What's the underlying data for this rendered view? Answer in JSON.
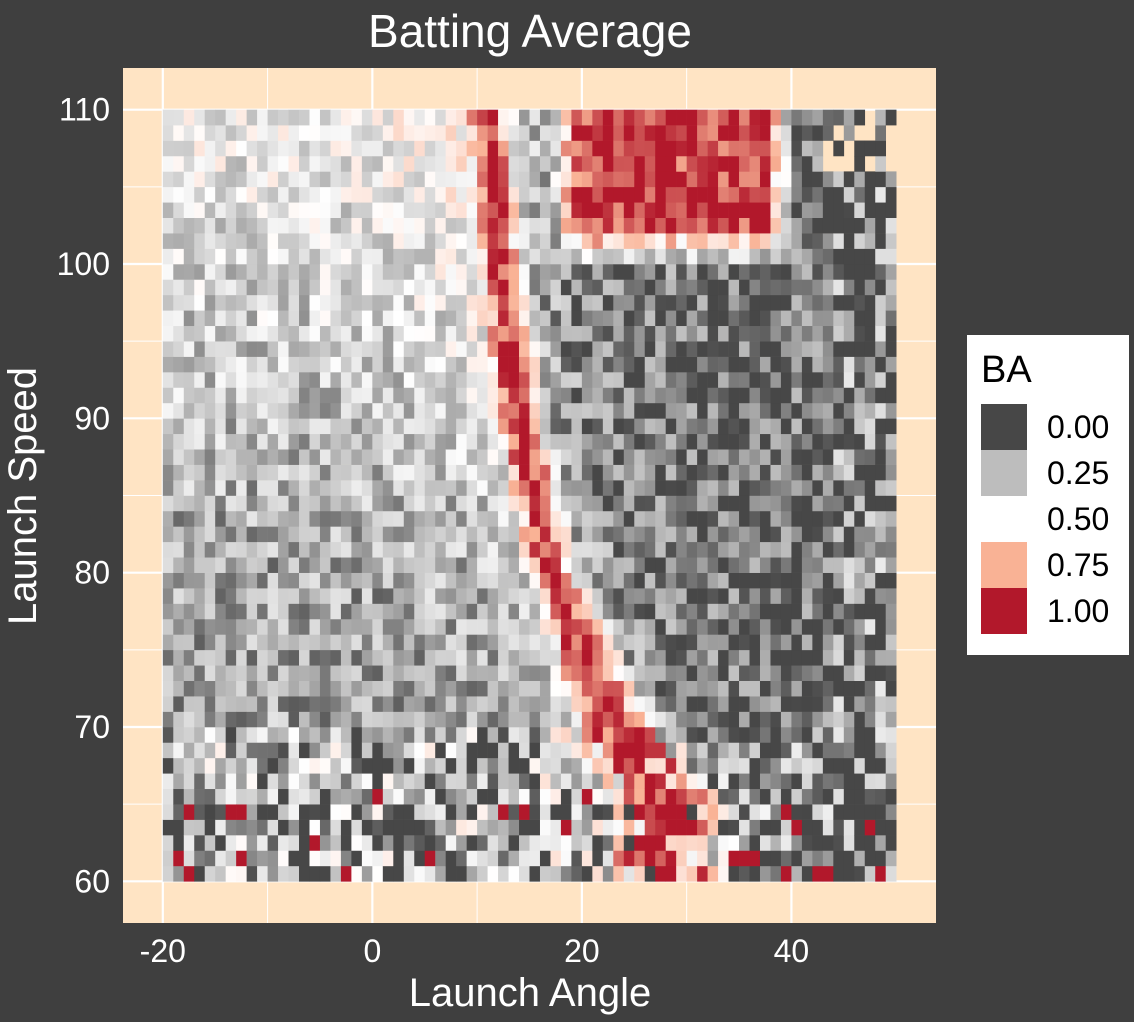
{
  "chart_data": {
    "type": "heatmap",
    "title": "Batting Average",
    "xlabel": "Launch Angle",
    "ylabel": "Launch Speed",
    "xlim": [
      -23.8,
      53.8
    ],
    "ylim": [
      57.3,
      112.7
    ],
    "x_ticks": [
      -20,
      0,
      20,
      40
    ],
    "y_ticks": [
      60,
      70,
      80,
      90,
      100,
      110
    ],
    "grid": true,
    "panel_color": "#ffe4c4",
    "cell_x_range": [
      -20,
      50
    ],
    "cell_y_range": [
      60,
      110
    ],
    "cell_width": 1,
    "cell_height": 1,
    "legend": {
      "title": "BA",
      "position": "right",
      "entries": [
        {
          "label": "0.00",
          "color": "#474747"
        },
        {
          "label": "0.25",
          "color": "#bdbdbd"
        },
        {
          "label": "0.50",
          "color": "#ffffff"
        },
        {
          "label": "0.75",
          "color": "#f9b295"
        },
        {
          "label": "1.00",
          "color": "#b2182b"
        }
      ]
    },
    "pattern": {
      "description_note": "",
      "ridge": [
        {
          "speed": 110,
          "angle": 11
        },
        {
          "speed": 100,
          "angle": 12
        },
        {
          "speed": 90,
          "angle": 14
        },
        {
          "speed": 80,
          "angle": 17
        },
        {
          "speed": 70,
          "angle": 23
        },
        {
          "speed": 65,
          "angle": 28
        }
      ],
      "hotspot": {
        "speed_min": 103,
        "speed_max": 110,
        "angle_min": 20,
        "angle_max": 37,
        "value": 0.95
      }
    }
  }
}
